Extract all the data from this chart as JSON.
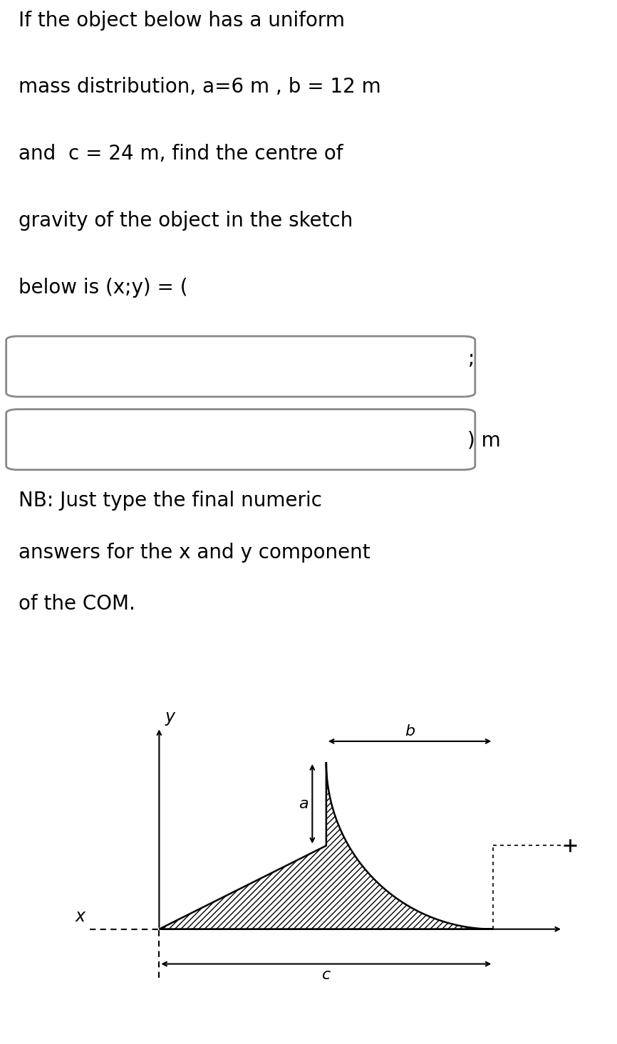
{
  "title_lines": [
    "If the object below has a uniform",
    "mass distribution, a=6 m , b = 12 m",
    "and  c = 24 m, find the centre of",
    "gravity of the object in the sketch",
    "below is (x;y) = ("
  ],
  "nb_lines": [
    "NB: Just type the final numeric",
    "answers for the x and y component",
    "of the COM."
  ],
  "semicolon": ";",
  "paren_m": ") m",
  "label_x": "x",
  "label_y": "y",
  "label_a": "a",
  "label_b": "b",
  "label_c": "c",
  "a_val": 6,
  "b_val": 12,
  "c_val": 24,
  "bg_color": "#ffffff",
  "text_color": "#000000",
  "text_fontsize": 20,
  "sketch_label_fontsize": 15,
  "box_edge_color": "#888888",
  "hatch": "////"
}
